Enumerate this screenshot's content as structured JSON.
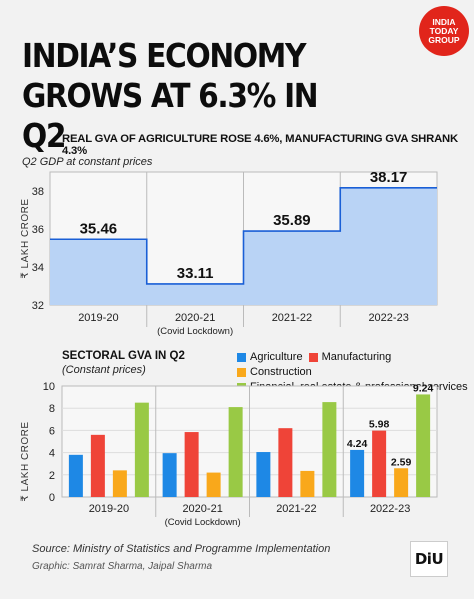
{
  "logo": {
    "line1": "INDIA",
    "line2": "TODAY",
    "line3": "GROUP"
  },
  "title": "INDIA’S ECONOMY GROWS AT 6.3% IN Q2",
  "subtitle": "REAL GVA OF AGRICULTURE ROSE 4.6%, MANUFACTURING GVA SHRANK 4.3%",
  "chart_data": [
    {
      "type": "area",
      "note": "Q2 GDP at constant prices",
      "ylabel": "₹ LAKH CRORE",
      "ylim": [
        32,
        39
      ],
      "yticks": [
        "32",
        "34",
        "36",
        "38"
      ],
      "categories": [
        "2019-20",
        "2020-21",
        "2021-22",
        "2022-23"
      ],
      "category_notes": [
        "",
        "(Covid Lockdown)",
        "",
        ""
      ],
      "values": [
        35.46,
        33.11,
        35.89,
        38.17
      ],
      "value_labels": [
        "35.46",
        "33.11",
        "35.89",
        "38.17"
      ],
      "fill_color": "#b9d3f5",
      "line_color": "#1a5fd6",
      "grid": true
    },
    {
      "type": "bar",
      "title": "SECTORAL GVA IN Q2",
      "note": "(Constant prices)",
      "ylabel": "₹ LAKH CRORE",
      "ylim": [
        0,
        10
      ],
      "yticks": [
        "0",
        "2",
        "4",
        "6",
        "8",
        "10"
      ],
      "categories": [
        "2019-20",
        "2020-21",
        "2021-22",
        "2022-23"
      ],
      "category_notes": [
        "",
        "(Covid Lockdown)",
        "",
        ""
      ],
      "series": [
        {
          "name": "Agriculture",
          "color": "#1e88e5",
          "values": [
            3.8,
            3.95,
            4.05,
            4.24
          ],
          "labels": [
            "",
            "",
            "",
            "4.24"
          ]
        },
        {
          "name": "Manufacturing",
          "color": "#ef4438",
          "values": [
            5.6,
            5.85,
            6.2,
            5.98
          ],
          "labels": [
            "",
            "",
            "",
            "5.98"
          ]
        },
        {
          "name": "Construction",
          "color": "#f9a81b",
          "values": [
            2.4,
            2.2,
            2.35,
            2.59
          ],
          "labels": [
            "",
            "",
            "",
            "2.59"
          ]
        },
        {
          "name": "Financial, real estate & professional services",
          "color": "#99c945",
          "values": [
            8.5,
            8.1,
            8.55,
            9.24
          ],
          "labels": [
            "",
            "",
            "",
            "9.24"
          ]
        }
      ],
      "legend": "top-right",
      "grid": true
    }
  ],
  "source": "Source: Ministry of Statistics and Programme Implementation",
  "graphic": "Graphic: Samrat Sharma, Jaipal Sharma",
  "diu": {
    "main": "DiU"
  }
}
